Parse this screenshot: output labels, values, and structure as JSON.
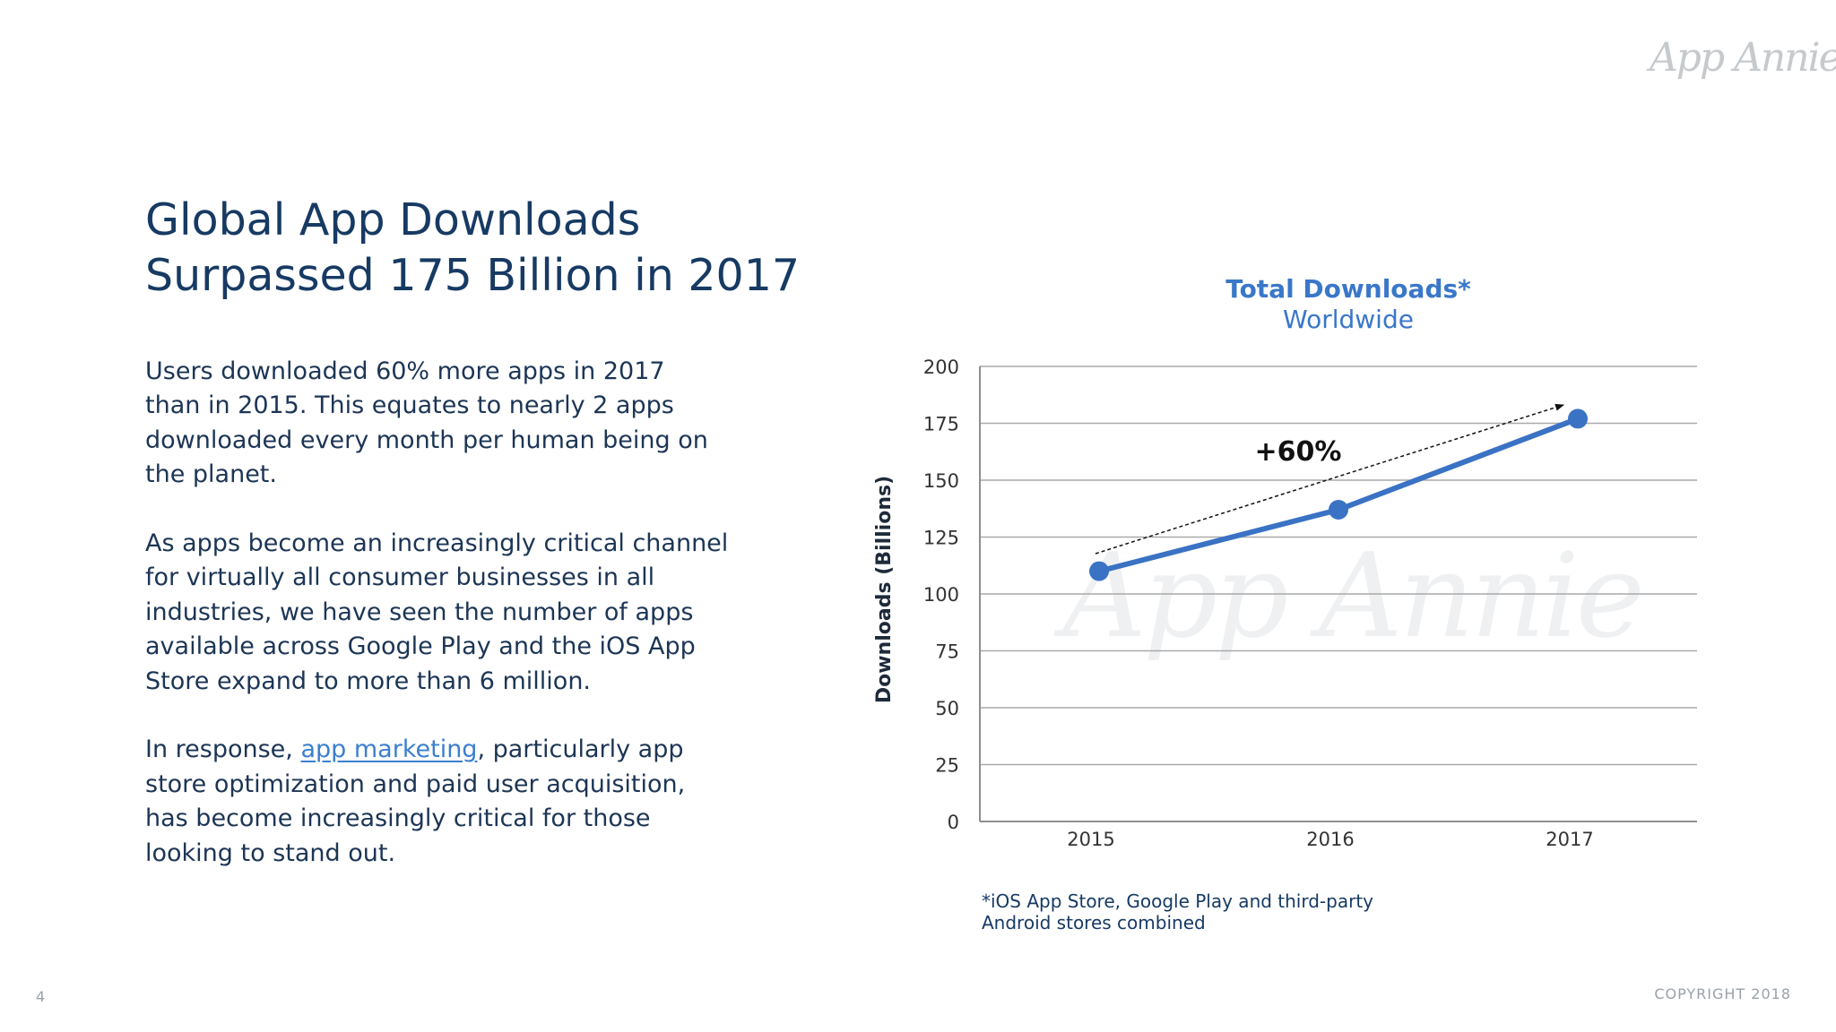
{
  "brand": {
    "logo_text": "App Annie",
    "watermark_text": "App Annie"
  },
  "slide": {
    "title_line1": "Global App Downloads",
    "title_line2": "Surpassed 175 Billion in 2017",
    "paragraphs": {
      "p1": [
        "Users downloaded 60% more apps in 2017",
        "than in 2015. This equates to nearly 2 apps",
        "downloaded every month per human being on",
        "the planet."
      ],
      "p2": [
        "As apps become an increasingly critical channel",
        "for virtually all consumer businesses in all",
        "industries, we have seen the number of apps",
        "available across Google Play and the iOS App",
        "Store expand to more than 6 million."
      ],
      "p3": {
        "before_link": "In response, ",
        "link_text": "app marketing",
        "after_link": ", particularly app",
        "lines": [
          "store optimization and paid user acquisition,",
          "has become increasingly critical for those",
          "looking to stand out."
        ]
      }
    },
    "page_number": "4",
    "copyright": "COPYRIGHT 2018"
  },
  "chart_data": {
    "type": "line",
    "title": "Total Downloads*",
    "subtitle": "Worldwide",
    "ylabel": "Downloads (Billions)",
    "xlabel": "",
    "categories": [
      "2015",
      "2016",
      "2017"
    ],
    "series": [
      {
        "values": [
          110,
          137,
          177
        ]
      }
    ],
    "ylim": [
      0,
      200
    ],
    "yticks": [
      0,
      25,
      50,
      75,
      100,
      125,
      150,
      175,
      200
    ],
    "grid": true,
    "annotation": "+60%",
    "footnote_lines": [
      "*iOS App Store, Google Play and third-party",
      "Android stores combined"
    ],
    "colors": {
      "line": "#3a72c4",
      "title": "#3977c9",
      "grid": "#a9a9a9",
      "text": "#333333"
    }
  }
}
